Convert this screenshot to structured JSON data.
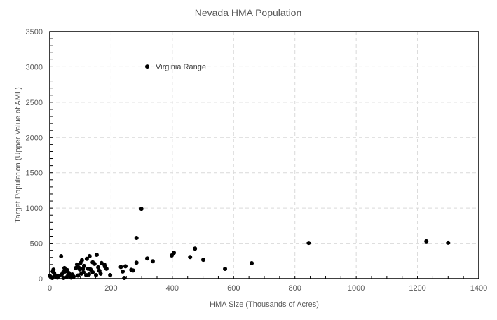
{
  "chart_data": {
    "type": "scatter",
    "title": "Nevada HMA Population",
    "xlabel": "HMA Size (Thousands of Acres)",
    "ylabel": "Target Population (Upper Value of AML)",
    "xlim": [
      0,
      1400
    ],
    "ylim": [
      0,
      3500
    ],
    "x_ticks": [
      0,
      200,
      400,
      600,
      800,
      1000,
      1200,
      1400
    ],
    "y_ticks": [
      0,
      500,
      1000,
      1500,
      2000,
      2500,
      3000,
      3500
    ],
    "x_minor_step": 50,
    "y_minor_step": 100,
    "grid": true,
    "grid_style": "dashed",
    "legend": "none",
    "marker_color": "#000000",
    "annotations": [
      {
        "text": "Virginia Range",
        "x": 318,
        "y": 3003
      }
    ],
    "series": [
      {
        "name": "HMAs",
        "points": [
          [
            318,
            3003
          ],
          [
            299,
            990
          ],
          [
            283,
            575
          ],
          [
            318,
            285
          ],
          [
            336,
            245
          ],
          [
            283,
            225
          ],
          [
            266,
            125
          ],
          [
            272,
            115
          ],
          [
            247,
            175
          ],
          [
            232,
            165
          ],
          [
            238,
            100
          ],
          [
            243,
            10
          ],
          [
            197,
            50
          ],
          [
            398,
            327
          ],
          [
            405,
            366
          ],
          [
            458,
            305
          ],
          [
            474,
            424
          ],
          [
            501,
            267
          ],
          [
            572,
            139
          ],
          [
            659,
            218
          ],
          [
            845,
            505
          ],
          [
            1229,
            527
          ],
          [
            1300,
            507
          ],
          [
            37,
            317
          ],
          [
            12,
            128
          ],
          [
            14,
            80
          ],
          [
            0,
            40
          ],
          [
            5,
            20
          ],
          [
            20,
            30
          ],
          [
            30,
            40
          ],
          [
            39,
            60
          ],
          [
            48,
            150
          ],
          [
            50,
            100
          ],
          [
            57,
            120
          ],
          [
            62,
            80
          ],
          [
            66,
            40
          ],
          [
            73,
            60
          ],
          [
            85,
            150
          ],
          [
            89,
            200
          ],
          [
            100,
            220
          ],
          [
            105,
            260
          ],
          [
            94,
            160
          ],
          [
            98,
            130
          ],
          [
            108,
            140
          ],
          [
            112,
            180
          ],
          [
            103,
            70
          ],
          [
            110,
            90
          ],
          [
            119,
            50
          ],
          [
            121,
            280
          ],
          [
            130,
            318
          ],
          [
            125,
            140
          ],
          [
            133,
            130
          ],
          [
            140,
            90
          ],
          [
            140,
            230
          ],
          [
            146,
            210
          ],
          [
            153,
            337
          ],
          [
            158,
            160
          ],
          [
            162,
            110
          ],
          [
            169,
            220
          ],
          [
            180,
            170
          ],
          [
            178,
            200
          ],
          [
            185,
            140
          ],
          [
            151,
            50
          ],
          [
            8,
            10
          ],
          [
            25,
            15
          ],
          [
            45,
            10
          ],
          [
            55,
            20
          ],
          [
            70,
            15
          ],
          [
            78,
            30
          ],
          [
            60,
            55
          ],
          [
            44,
            90
          ],
          [
            16,
            55
          ],
          [
            10,
            100
          ],
          [
            92,
            45
          ],
          [
            128,
            60
          ],
          [
            166,
            70
          ]
        ]
      }
    ]
  }
}
